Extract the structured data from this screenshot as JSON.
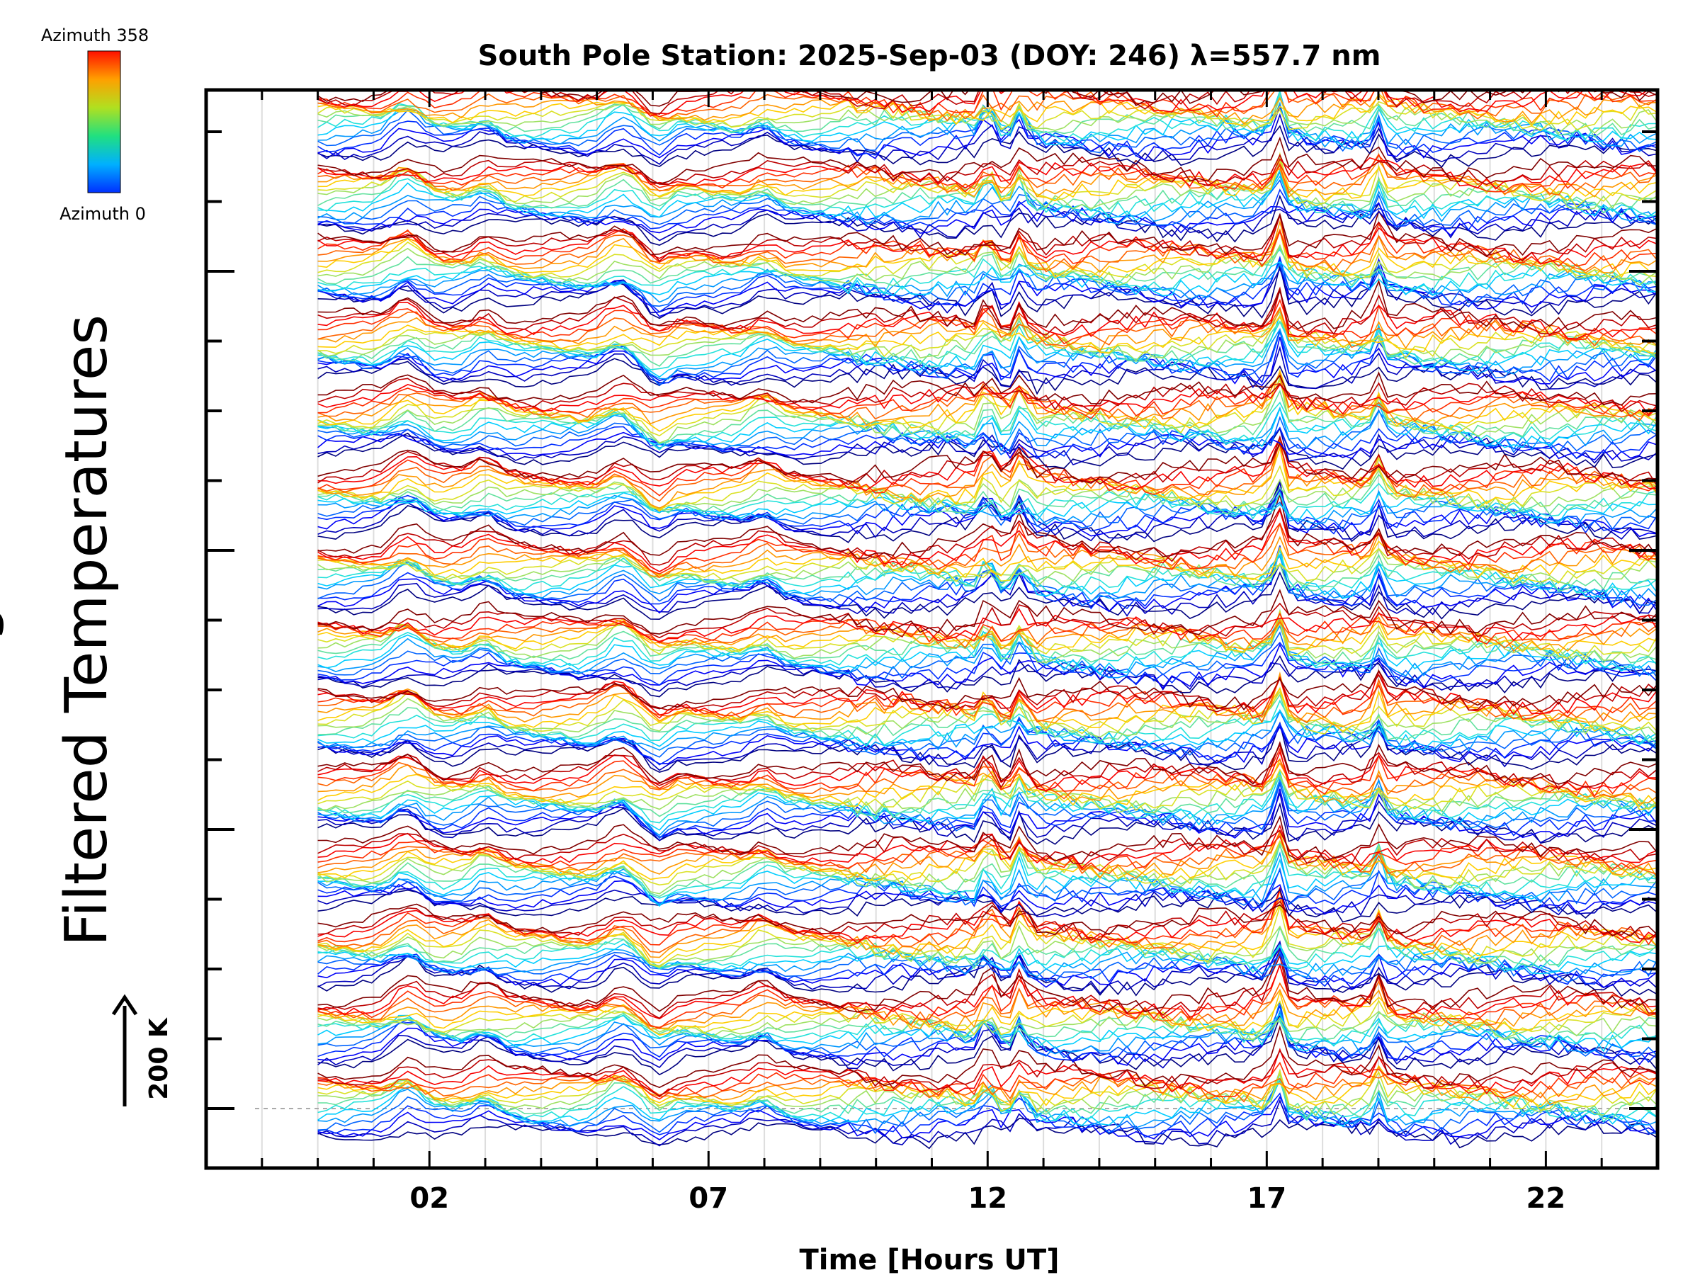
{
  "chart_data": {
    "type": "line",
    "title": "South Pole Station: 2025-Sep-03 (DOY: 246) λ=557.7 nm",
    "xlabel": "Time [Hours UT]",
    "ylabel": "Filtered Temperatures",
    "ylabel_clipped_fragment": "g",
    "xlim": [
      -2,
      24
    ],
    "x_data_range": [
      0,
      24
    ],
    "x_major_ticks": [
      2,
      7,
      12,
      17,
      22
    ],
    "x_tick_labels": [
      "02",
      "07",
      "12",
      "17",
      "22"
    ],
    "x_minor_tick_step": 1,
    "stack": {
      "groups": 14,
      "traces_per_group": 18,
      "group_offset_note": "stacked traces, one per sky azimuth per ring; each major y tick is one stack step"
    },
    "scale_bar": {
      "label": "200 K",
      "value_K": 200
    },
    "colorbar": {
      "top_label": "Azimuth 358",
      "bottom_label": "Azimuth 0",
      "min": 0,
      "max": 358,
      "colormap": "jet (blue to red)"
    },
    "event_hours": [
      12.0,
      12.6,
      17.2,
      19.0
    ],
    "grid": "vertical gridlines each hour"
  }
}
